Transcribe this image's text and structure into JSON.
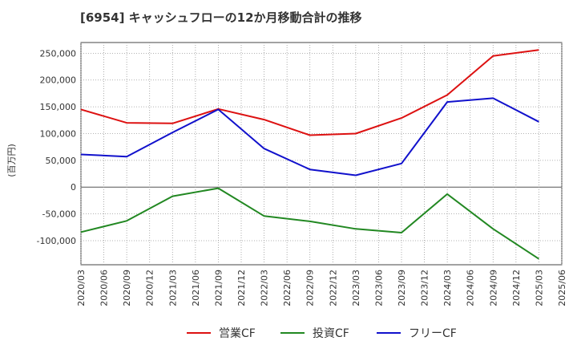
{
  "chart_data": {
    "type": "line",
    "title": "[6954]  キャッシュフローの12か月移動合計の推移",
    "ylabel": "(百万円)",
    "xlabel": "",
    "ylim": [
      -145000,
      270000
    ],
    "y_ticks": [
      250000,
      200000,
      150000,
      100000,
      50000,
      0,
      -50000,
      -100000
    ],
    "y_tick_labels": [
      "250,000",
      "200,000",
      "150,000",
      "100,000",
      "50,000",
      "0",
      "-50,000",
      "-100,000"
    ],
    "x_tick_labels": [
      "2020/03",
      "2020/06",
      "2020/09",
      "2020/12",
      "2021/03",
      "2021/06",
      "2021/09",
      "2021/12",
      "2022/03",
      "2022/06",
      "2022/09",
      "2022/12",
      "2023/03",
      "2023/06",
      "2023/09",
      "2023/12",
      "2024/03",
      "2024/06",
      "2024/09",
      "2024/12",
      "2025/03",
      "2025/06"
    ],
    "x": [
      "2020/03",
      "2020/09",
      "2021/03",
      "2021/09",
      "2022/03",
      "2022/09",
      "2023/03",
      "2023/09",
      "2024/03",
      "2024/09",
      "2025/03"
    ],
    "series": [
      {
        "name": "営業CF",
        "color": "#dd1111",
        "values": [
          145000,
          120000,
          119000,
          146000,
          126000,
          97000,
          100000,
          129000,
          172000,
          245000,
          256000
        ]
      },
      {
        "name": "投資CF",
        "color": "#228822",
        "values": [
          -84000,
          -63000,
          -17000,
          -2000,
          -54000,
          -64000,
          -78000,
          -85000,
          -13000,
          -78000,
          -134000
        ]
      },
      {
        "name": "フリーCF",
        "color": "#1111cc",
        "values": [
          61000,
          57000,
          102000,
          145000,
          72000,
          33000,
          22000,
          44000,
          159000,
          166000,
          122000
        ]
      }
    ],
    "grid": true,
    "legend_position": "bottom"
  }
}
